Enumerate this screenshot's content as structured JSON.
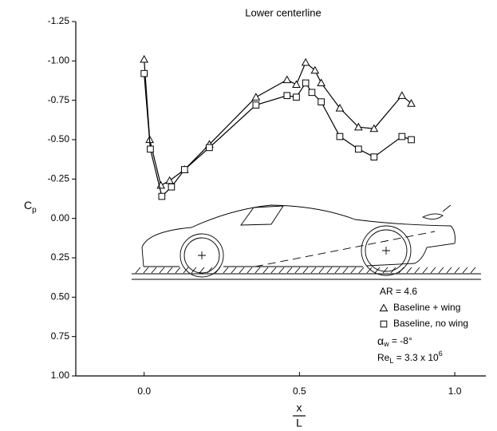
{
  "chart_data": {
    "type": "line",
    "title": "Lower centerline",
    "y_label": {
      "main": "C",
      "sub": "p"
    },
    "x_label": {
      "numerator": "x",
      "denominator": "L"
    },
    "xlim": [
      -0.22,
      1.1
    ],
    "xticks": [
      {
        "value": 0,
        "label": "0.0"
      },
      0.5,
      {
        "value": 1,
        "label": "1.0"
      }
    ],
    "ylim": [
      1.0,
      -1.25
    ],
    "yticks": [
      {
        "value": -1.25,
        "label": "-1.25"
      },
      {
        "value": -1,
        "label": "-1.00"
      },
      {
        "value": -0.75,
        "label": "-0.75"
      },
      {
        "value": -0.5,
        "label": "-0.50"
      },
      {
        "value": -0.25,
        "label": "-0.25"
      },
      {
        "value": 0,
        "label": "0.00"
      },
      {
        "value": 0.25,
        "label": "0.25"
      },
      {
        "value": 0.5,
        "label": "0.50"
      },
      {
        "value": 0.75,
        "label": "0.75"
      },
      {
        "value": 1,
        "label": "1.00"
      }
    ],
    "series": [
      {
        "name": "Baseline + wing",
        "color": "#000000",
        "marker": "triangle",
        "x": [
          0,
          0.018,
          0.054,
          0.082,
          0.13,
          0.21,
          0.36,
          0.46,
          0.49,
          0.52,
          0.55,
          0.57,
          0.63,
          0.69,
          0.74,
          0.83,
          0.86
        ],
        "values": [
          -1.01,
          -0.5,
          -0.21,
          -0.24,
          -0.31,
          -0.47,
          -0.77,
          -0.88,
          -0.85,
          -0.99,
          -0.94,
          -0.86,
          -0.7,
          -0.58,
          -0.57,
          -0.78,
          -0.73
        ]
      },
      {
        "name": "Baseline, no wing",
        "color": "#000000",
        "marker": "square",
        "x": [
          0,
          0.02,
          0.057,
          0.088,
          0.13,
          0.21,
          0.36,
          0.46,
          0.49,
          0.52,
          0.54,
          0.57,
          0.63,
          0.69,
          0.74,
          0.83,
          0.86
        ],
        "values": [
          -0.92,
          -0.44,
          -0.14,
          -0.2,
          -0.31,
          -0.45,
          -0.72,
          -0.78,
          -0.77,
          -0.86,
          -0.8,
          -0.74,
          -0.52,
          -0.44,
          -0.39,
          -0.52,
          -0.5
        ]
      }
    ],
    "annotations": {
      "aspect_ratio": "AR = 4.6",
      "alpha": {
        "main": "α",
        "sub": "w",
        "rest": " = -8°"
      },
      "reynolds": {
        "main": "Re",
        "sub": "L",
        "rest": " = 3.3 x 10",
        "sup": "6"
      }
    }
  }
}
